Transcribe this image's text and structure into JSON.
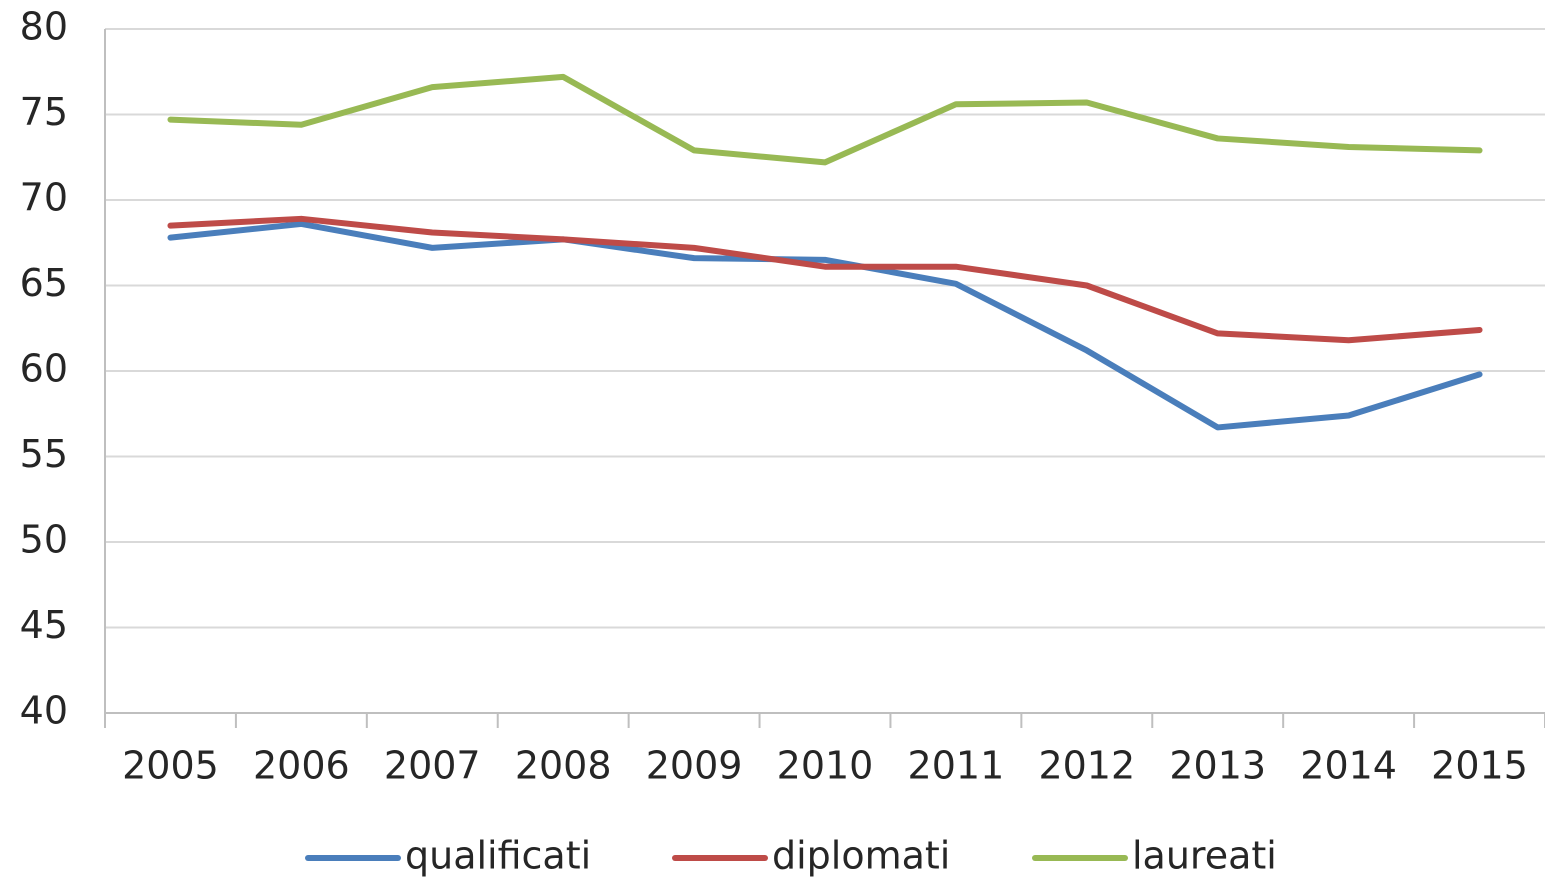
{
  "chart_data": {
    "type": "line",
    "categories": [
      "2005",
      "2006",
      "2007",
      "2008",
      "2009",
      "2010",
      "2011",
      "2012",
      "2013",
      "2014",
      "2015"
    ],
    "series": [
      {
        "name": "qualificati",
        "color": "#4a7ebb",
        "values": [
          67.8,
          68.6,
          67.2,
          67.7,
          66.6,
          66.5,
          65.1,
          61.2,
          56.7,
          57.4,
          59.8
        ]
      },
      {
        "name": "diplomati",
        "color": "#be4b48",
        "values": [
          68.5,
          68.9,
          68.1,
          67.7,
          67.2,
          66.1,
          66.1,
          65.0,
          62.2,
          61.8,
          62.4
        ]
      },
      {
        "name": "laureati",
        "color": "#98b954",
        "values": [
          74.7,
          74.4,
          76.6,
          77.2,
          72.9,
          72.2,
          75.6,
          75.7,
          73.6,
          73.1,
          72.9
        ]
      }
    ],
    "ylim": [
      40,
      80
    ],
    "yticks": [
      40,
      45,
      50,
      55,
      60,
      65,
      70,
      75,
      80
    ],
    "grid": true,
    "legend": "bottom"
  }
}
